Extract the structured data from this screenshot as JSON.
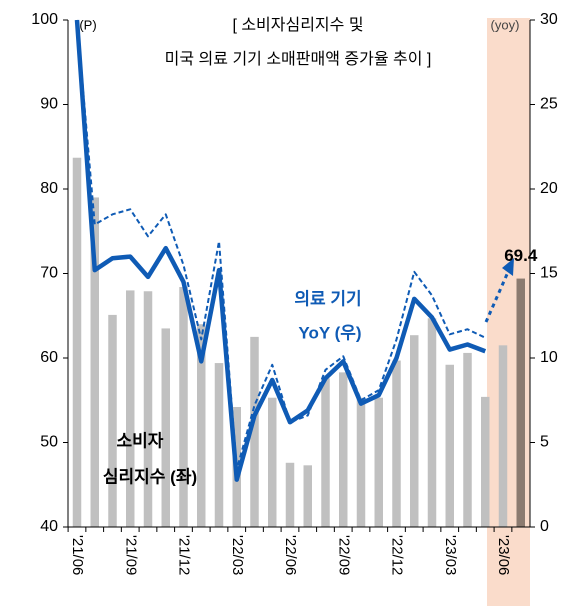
{
  "chart_data": {
    "type": "bar-line",
    "title": [
      "[ 소비자심리지수 및",
      "미국 의료 기기 소매판매액 증가율 추이 ]"
    ],
    "y_label": "(P)",
    "y2_label": "(yoy)",
    "annotations": [
      [
        "의료 기기",
        "YoY (우)"
      ],
      [
        "소비자",
        "심리지수 (좌)"
      ]
    ],
    "categories": [
      "'21/06",
      null,
      null,
      "'21/09",
      null,
      null,
      "'21/12",
      null,
      null,
      "'22/03",
      null,
      null,
      "'22/06",
      null,
      null,
      "'22/09",
      null,
      null,
      "'22/12",
      null,
      null,
      "'23/03",
      null,
      null,
      "'23/06",
      null
    ],
    "series": [
      {
        "name": "소비자 심리지수 (좌)",
        "kind": "bar",
        "color": "#c0c0c0",
        "highlight_color": "#8c7b70",
        "values": [
          83.7,
          79,
          65.1,
          68,
          67.9,
          63.5,
          68.4,
          64,
          59.4,
          54.2,
          62.5,
          55.3,
          47.6,
          47.3,
          57.6,
          58.3,
          55.3,
          55.3,
          59.7,
          62.7,
          64.7,
          59.2,
          60.6,
          55.4,
          61.5,
          69.4
        ]
      },
      {
        "name": "의료 기기 YoY (우)",
        "kind": "line",
        "axis": "y2",
        "color": "#0f5bb5",
        "values": [
          30,
          15.2,
          15.9,
          16,
          14.8,
          16.5,
          14.5,
          9.8,
          15.2,
          2.8,
          6.6,
          8.7,
          6.2,
          6.9,
          8.8,
          9.8,
          7.3,
          7.8,
          10,
          13.5,
          12.4,
          10.5,
          10.8,
          10.4,
          null,
          null
        ]
      },
      {
        "kind": "dashed-line",
        "axis": "y2",
        "color": "#0f5bb5",
        "values": [
          30,
          17.9,
          18.5,
          18.8,
          17.2,
          18.5,
          15.5,
          11.1,
          16.9,
          3.4,
          7.2,
          9.6,
          6.2,
          6.6,
          9.3,
          10.1,
          7.5,
          8.1,
          11.1,
          15.1,
          13.7,
          11.4,
          11.7,
          11.2,
          null,
          null
        ]
      }
    ],
    "ylim": [
      40,
      100
    ],
    "yticks": [
      40,
      50,
      60,
      70,
      80,
      90,
      100
    ],
    "y2lim": [
      0,
      30
    ],
    "y2ticks": [
      0,
      5,
      10,
      15,
      20,
      25,
      30
    ]
  }
}
